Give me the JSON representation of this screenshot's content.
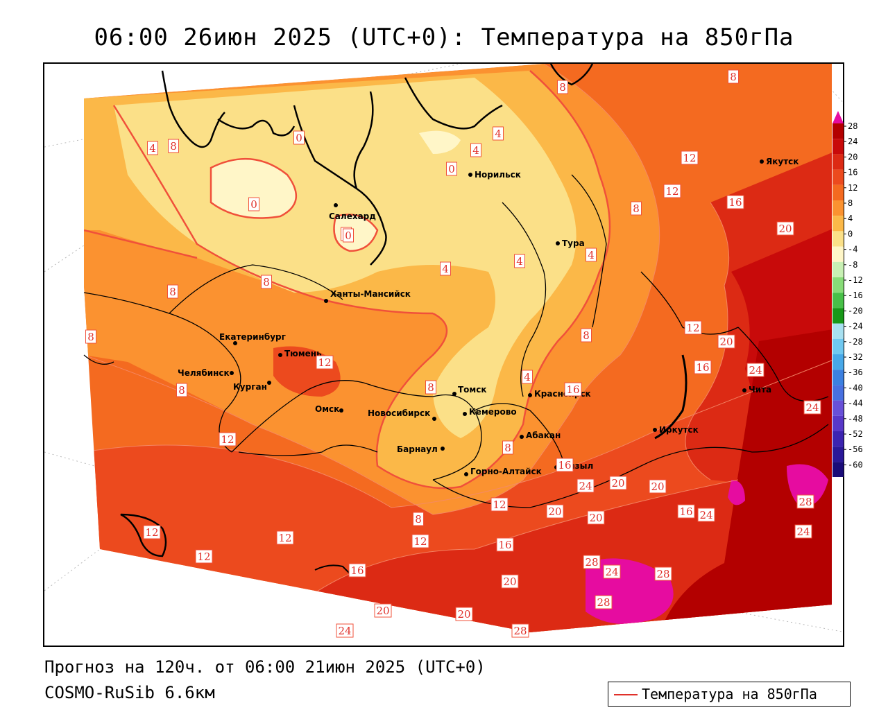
{
  "title": "06:00 26июн 2025 (UTC+0): Температура на 850гПа",
  "footer": {
    "forecast": "Прогноз на 120ч. от 06:00 21июн 2025 (UTC+0)",
    "model": "COSMO-RuSib 6.6км"
  },
  "legend": {
    "label": "Температура на 850гПа",
    "line_color": "#e0302a"
  },
  "scale": {
    "labels": [
      "28",
      "24",
      "20",
      "16",
      "12",
      "8",
      "4",
      "0",
      "-4",
      "-8",
      "-12",
      "-16",
      "-20",
      "-24",
      "-28",
      "-32",
      "-36",
      "-40",
      "-44",
      "-48",
      "-52",
      "-56",
      "-60"
    ],
    "colors": [
      "#b30000",
      "#c80a0a",
      "#dc2a14",
      "#ec4a1e",
      "#f46a20",
      "#fb9230",
      "#fbb848",
      "#fbe088",
      "#fff6c8",
      "#c8f0b4",
      "#88dc78",
      "#48c048",
      "#189818",
      "#a8e0f0",
      "#70c8f0",
      "#48a8e8",
      "#3c80e0",
      "#4870e0",
      "#6850d8",
      "#5838c8",
      "#3c24b0",
      "#2a1898",
      "#1a0c78"
    ]
  },
  "cities": [
    {
      "name": "Якутск"
    },
    {
      "name": "Норильск"
    },
    {
      "name": "Салехард"
    },
    {
      "name": "Тура"
    },
    {
      "name": "Ханты-Мансийск"
    },
    {
      "name": "Екатеринбург"
    },
    {
      "name": "Тюмень"
    },
    {
      "name": "Челябинск"
    },
    {
      "name": "Курган"
    },
    {
      "name": "Омск"
    },
    {
      "name": "Новосибирск"
    },
    {
      "name": "Томск"
    },
    {
      "name": "Кемерово"
    },
    {
      "name": "Красноярск"
    },
    {
      "name": "Барнаул"
    },
    {
      "name": "Абакан"
    },
    {
      "name": "Горно-Алтайск"
    },
    {
      "name": "Кызыл"
    },
    {
      "name": "Иркутск"
    },
    {
      "name": "Чита"
    }
  ],
  "isotherm_labels": [
    "8",
    "8",
    "8",
    "12",
    "12",
    "16",
    "20",
    "4",
    "0",
    "0",
    "0",
    "4",
    "0",
    "4",
    "8",
    "0",
    "4",
    "4",
    "4",
    "8",
    "8",
    "8",
    "4",
    "8",
    "12",
    "20",
    "16",
    "24",
    "12",
    "8",
    "8",
    "16",
    "24",
    "12",
    "8",
    "8",
    "12",
    "12",
    "12",
    "12",
    "16",
    "16",
    "12",
    "20",
    "20",
    "20",
    "20",
    "16",
    "24",
    "28",
    "24",
    "16",
    "20",
    "28",
    "24",
    "28",
    "28",
    "20",
    "20",
    "28",
    "24",
    "24"
  ]
}
